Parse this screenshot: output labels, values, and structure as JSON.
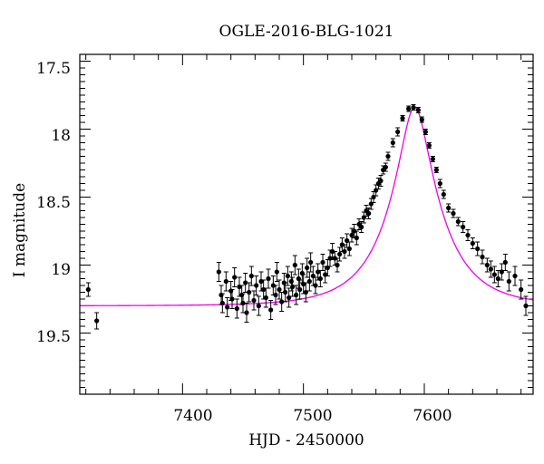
{
  "chart_data": {
    "type": "scatter",
    "title": "OGLE-2016-BLG-1021",
    "xlabel": "HJD - 2450000",
    "ylabel": "I magnitude",
    "xlim": [
      7315,
      7690
    ],
    "ylim": [
      19.95,
      17.45
    ],
    "y_inverted": true,
    "xticks": [
      7400,
      7500,
      7600
    ],
    "yticks": [
      17.5,
      18,
      18.5,
      19,
      19.5
    ],
    "ytick_labels": [
      "17.5",
      "18",
      "18.5",
      "19",
      "19.5"
    ],
    "grid": false,
    "legend": "none",
    "colors": {
      "points": "#000000",
      "model": "#ee00ee",
      "axes": "#000000"
    },
    "series": [
      {
        "type": "errorbar_points",
        "x": [
          7322,
          7329,
          7430,
          7432,
          7433,
          7436,
          7437,
          7440,
          7441,
          7443,
          7445,
          7447,
          7449,
          7450,
          7452,
          7453,
          7455,
          7457,
          7459,
          7461,
          7463,
          7465,
          7467,
          7469,
          7471,
          7473,
          7475,
          7477,
          7478,
          7480,
          7482,
          7484,
          7485,
          7487,
          7488,
          7490,
          7491,
          7493,
          7494,
          7496,
          7497,
          7499,
          7500,
          7502,
          7503,
          7505,
          7506,
          7508,
          7510,
          7512,
          7514,
          7516,
          7518,
          7520,
          7522,
          7524,
          7526,
          7528,
          7530,
          7532,
          7534,
          7536,
          7538,
          7540,
          7542,
          7544,
          7546,
          7548,
          7550,
          7552,
          7554,
          7556,
          7558,
          7560,
          7562,
          7564,
          7566,
          7568,
          7570,
          7574,
          7578,
          7582,
          7587,
          7591,
          7595,
          7598,
          7601,
          7604,
          7607,
          7610,
          7613,
          7616,
          7620,
          7624,
          7628,
          7632,
          7636,
          7640,
          7644,
          7648,
          7652,
          7655,
          7658,
          7661,
          7664,
          7667,
          7670,
          7675,
          7680,
          7684
        ],
        "y": [
          19.18,
          19.41,
          19.05,
          19.22,
          19.28,
          19.12,
          19.31,
          19.19,
          19.25,
          19.09,
          19.32,
          19.16,
          19.22,
          19.28,
          19.13,
          19.35,
          19.2,
          19.08,
          19.26,
          19.15,
          19.3,
          19.12,
          19.18,
          19.24,
          19.1,
          19.33,
          19.15,
          19.22,
          19.05,
          19.18,
          19.27,
          19.13,
          19.2,
          19.08,
          19.24,
          19.12,
          19.16,
          19.0,
          19.22,
          19.1,
          19.18,
          19.06,
          19.14,
          19.2,
          19.02,
          19.12,
          18.98,
          19.08,
          19.15,
          19.05,
          19.1,
          18.98,
          19.07,
          19.02,
          18.95,
          18.9,
          18.95,
          19.0,
          18.92,
          18.85,
          18.9,
          18.82,
          18.88,
          18.78,
          18.75,
          18.8,
          18.7,
          18.72,
          18.65,
          18.6,
          18.62,
          18.55,
          18.5,
          18.45,
          18.4,
          18.38,
          18.3,
          18.28,
          18.2,
          18.1,
          18.02,
          17.92,
          17.85,
          17.84,
          17.86,
          17.93,
          18.02,
          18.12,
          18.22,
          18.3,
          18.4,
          18.48,
          18.58,
          18.62,
          18.68,
          18.72,
          18.78,
          18.84,
          18.88,
          18.94,
          19.0,
          19.03,
          19.07,
          19.1,
          19.05,
          18.98,
          19.12,
          19.08,
          19.18,
          19.3
        ],
        "yerr": [
          0.05,
          0.06,
          0.07,
          0.07,
          0.07,
          0.07,
          0.07,
          0.07,
          0.07,
          0.07,
          0.07,
          0.07,
          0.07,
          0.07,
          0.07,
          0.07,
          0.07,
          0.07,
          0.07,
          0.07,
          0.07,
          0.07,
          0.07,
          0.07,
          0.07,
          0.07,
          0.07,
          0.07,
          0.07,
          0.07,
          0.07,
          0.07,
          0.07,
          0.07,
          0.07,
          0.07,
          0.07,
          0.07,
          0.07,
          0.07,
          0.07,
          0.07,
          0.07,
          0.07,
          0.07,
          0.07,
          0.07,
          0.07,
          0.06,
          0.06,
          0.06,
          0.06,
          0.06,
          0.06,
          0.06,
          0.06,
          0.05,
          0.05,
          0.05,
          0.05,
          0.05,
          0.05,
          0.05,
          0.05,
          0.05,
          0.05,
          0.04,
          0.04,
          0.04,
          0.04,
          0.04,
          0.04,
          0.04,
          0.04,
          0.04,
          0.04,
          0.03,
          0.03,
          0.03,
          0.03,
          0.03,
          0.02,
          0.02,
          0.02,
          0.02,
          0.02,
          0.02,
          0.02,
          0.02,
          0.02,
          0.03,
          0.03,
          0.03,
          0.03,
          0.03,
          0.04,
          0.04,
          0.04,
          0.05,
          0.05,
          0.05,
          0.06,
          0.06,
          0.06,
          0.06,
          0.06,
          0.07,
          0.07,
          0.07,
          0.07
        ]
      },
      {
        "type": "model_curve",
        "baseline_mag": 19.3,
        "peak_mag": 17.84,
        "t0": 7592,
        "u0": 0.26,
        "tE": 44
      }
    ]
  }
}
